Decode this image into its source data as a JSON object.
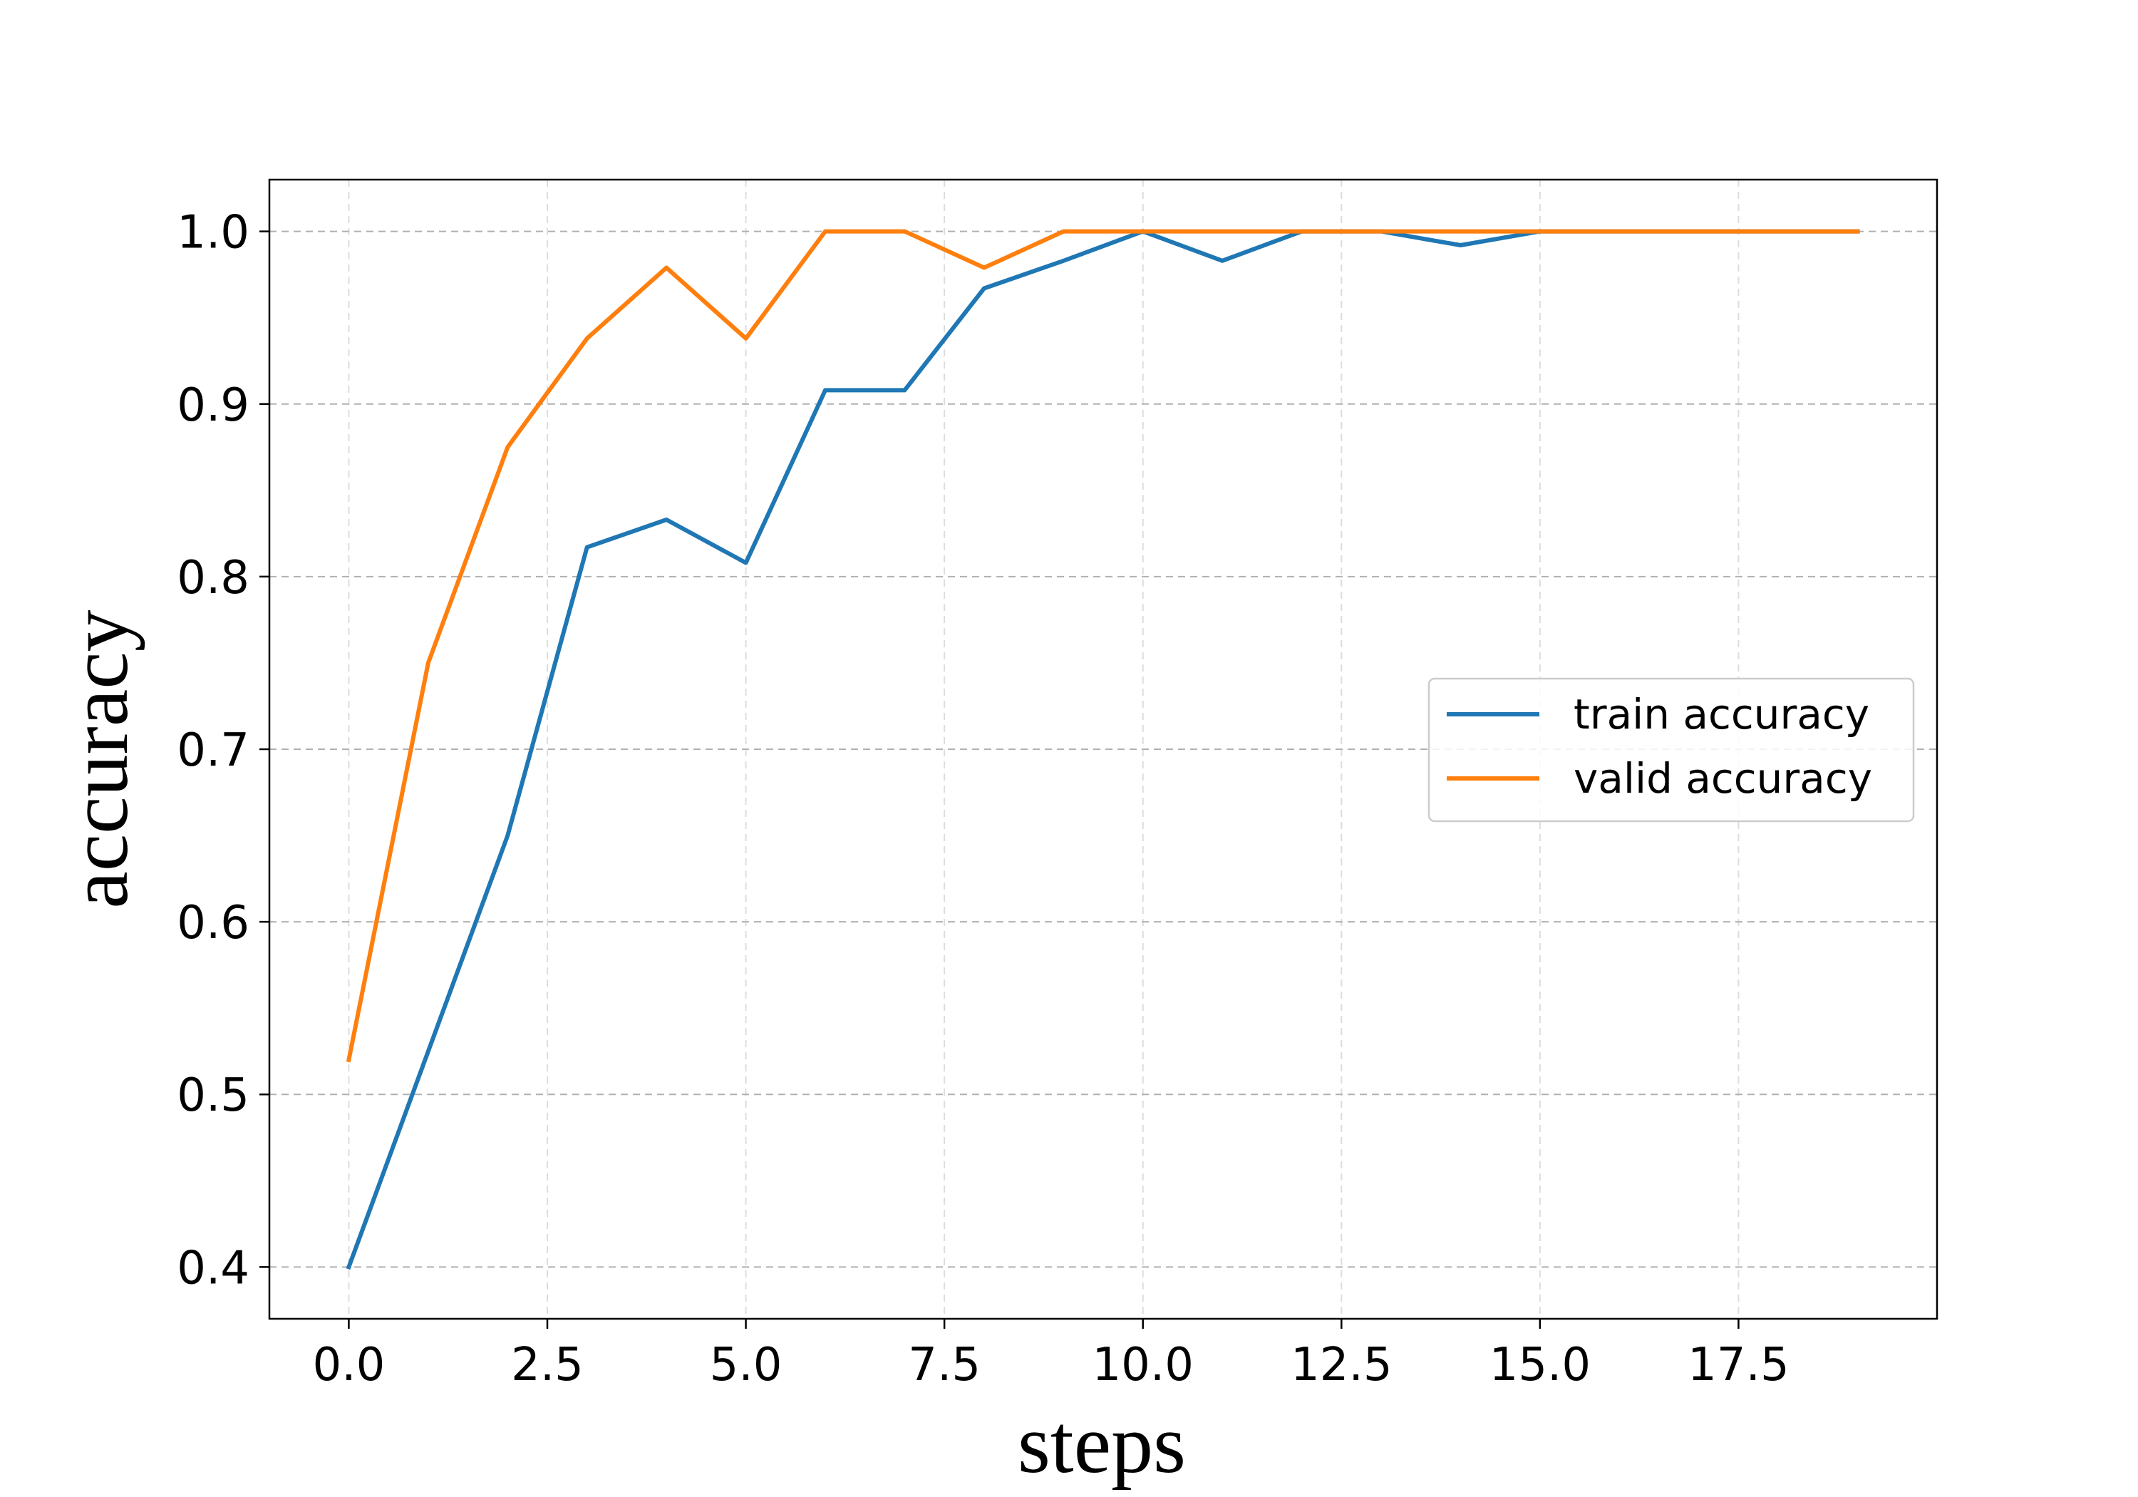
{
  "chart_data": {
    "type": "line",
    "xlabel": "steps",
    "ylabel": "accuracy",
    "xlim": [
      -1.0,
      20.0
    ],
    "ylim": [
      0.37,
      1.03
    ],
    "xticks": [
      0.0,
      2.5,
      5.0,
      7.5,
      10.0,
      12.5,
      15.0,
      17.5
    ],
    "xtick_labels": [
      "0.0",
      "2.5",
      "5.0",
      "7.5",
      "10.0",
      "12.5",
      "15.0",
      "17.5"
    ],
    "yticks": [
      0.4,
      0.5,
      0.6,
      0.7,
      0.8,
      0.9,
      1.0
    ],
    "ytick_labels": [
      "0.4",
      "0.5",
      "0.6",
      "0.7",
      "0.8",
      "0.9",
      "1.0"
    ],
    "grid": true,
    "legend_position": "center-right",
    "x": [
      0,
      1,
      2,
      3,
      4,
      5,
      6,
      7,
      8,
      9,
      10,
      11,
      12,
      13,
      14,
      15,
      16,
      17,
      18,
      19
    ],
    "series": [
      {
        "name": "train accuracy",
        "color": "#1f77b4",
        "values": [
          0.4,
          0.525,
          0.65,
          0.817,
          0.833,
          0.808,
          0.908,
          0.908,
          0.967,
          0.983,
          1.0,
          0.983,
          1.0,
          1.0,
          0.992,
          1.0,
          1.0,
          1.0,
          1.0,
          1.0
        ]
      },
      {
        "name": "valid accuracy",
        "color": "#ff7f0e",
        "values": [
          0.52,
          0.75,
          0.875,
          0.938,
          0.979,
          0.938,
          1.0,
          1.0,
          0.979,
          1.0,
          1.0,
          1.0,
          1.0,
          1.0,
          1.0,
          1.0,
          1.0,
          1.0,
          1.0,
          1.0
        ]
      }
    ]
  }
}
